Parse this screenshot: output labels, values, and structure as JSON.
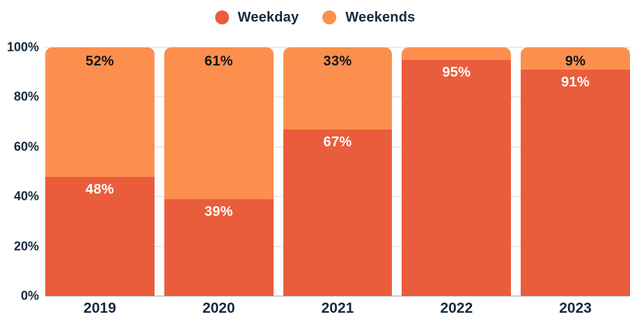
{
  "chart_data": {
    "type": "bar",
    "stacked": true,
    "percent": true,
    "title": "",
    "categories": [
      "2019",
      "2020",
      "2021",
      "2022",
      "2023"
    ],
    "series": [
      {
        "name": "Weekday",
        "color": "#E95D3C",
        "values": [
          48,
          39,
          67,
          95,
          91
        ],
        "labels": [
          "48%",
          "39%",
          "67%",
          "95%",
          "91%"
        ],
        "label_color": "#FFFFFF"
      },
      {
        "name": "Weekends",
        "color": "#FC8F4E",
        "values": [
          52,
          61,
          33,
          5,
          9
        ],
        "labels": [
          "52%",
          "61%",
          "33%",
          "",
          "9%"
        ],
        "label_color": "#121417"
      }
    ],
    "y_ticks": [
      "0%",
      "20%",
      "40%",
      "60%",
      "80%",
      "100%"
    ],
    "ylim": [
      0,
      100
    ],
    "grid": true,
    "legend_position": "top",
    "colors": {
      "axis_text": "#15293D",
      "gridline": "#E9EBEF",
      "baseline": "#C9CFD6",
      "background": "#FFFFFF"
    }
  }
}
